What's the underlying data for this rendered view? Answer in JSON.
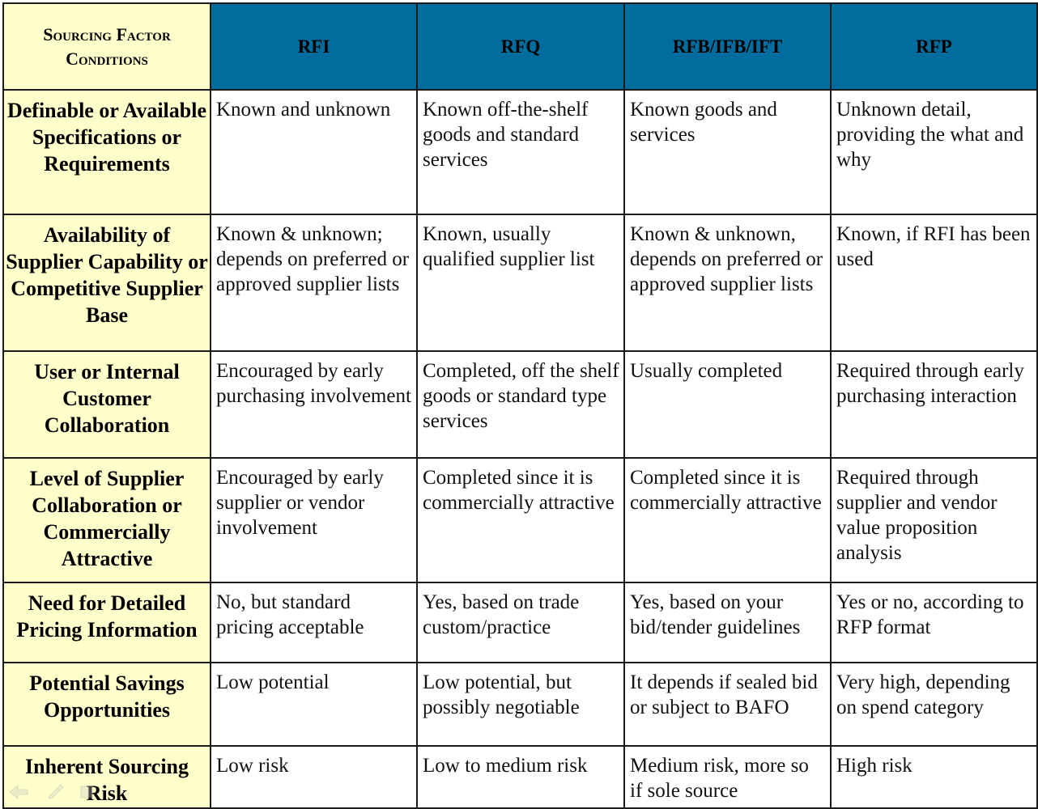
{
  "table": {
    "corner_header": "Sourcing Factor Conditions",
    "columns": [
      "RFI",
      "RFQ",
      "RFB/IFB/IFT",
      "RFP"
    ],
    "rows": [
      {
        "label": "Definable or Available Specifications or Requirements",
        "cells": [
          "Known and unknown",
          "Known off-the-shelf goods and standard services",
          "Known goods and services",
          "Unknown detail, providing the what and why"
        ]
      },
      {
        "label": "Availability of Supplier Capability or Competitive Supplier Base",
        "cells": [
          "Known & unknown; depends on preferred or approved supplier lists",
          "Known, usually qualified supplier list",
          "Known & unknown, depends on preferred or approved supplier lists",
          "Known, if RFI has been used"
        ]
      },
      {
        "label": "User or Internal Customer Collaboration",
        "cells": [
          "Encouraged by early purchasing involvement",
          "Completed, off the shelf goods or standard type services",
          "Usually completed",
          "Required through early purchasing interaction"
        ]
      },
      {
        "label": "Level of Supplier Collaboration or Commercially Attractive",
        "cells": [
          "Encouraged by early supplier or vendor involvement",
          "Completed since it is commercially attractive",
          "Completed since it is commercially attractive",
          "Required through supplier and vendor value proposition analysis"
        ]
      },
      {
        "label": "Need for Detailed Pricing Information",
        "cells": [
          "No, but standard pricing acceptable",
          "Yes, based on trade custom/practice",
          "Yes, based on your bid/tender guidelines",
          "Yes or no, according to RFP format"
        ]
      },
      {
        "label": "Potential Savings Opportunities",
        "cells": [
          "Low potential",
          "Low potential, but possibly negotiable",
          "It depends if sealed bid or subject to BAFO",
          "Very high, depending on spend category"
        ]
      },
      {
        "label": "Inherent Sourcing Risk",
        "cells": [
          "Low risk",
          "Low to medium risk",
          "Medium risk, more so if sole source",
          "High risk"
        ]
      }
    ]
  },
  "colors": {
    "header_bg": "#006d9e",
    "rowhead_bg": "#ffffcc",
    "border": "#1b1b1b"
  },
  "nav_icons": [
    "back-arrow-icon",
    "pen-icon",
    "menu-icon"
  ]
}
